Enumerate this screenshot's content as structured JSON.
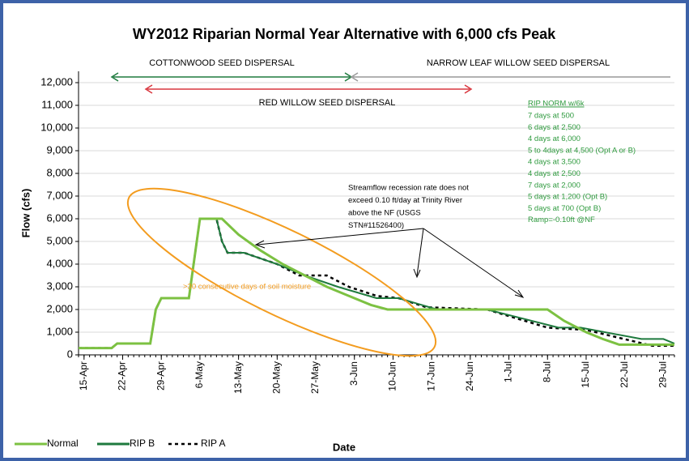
{
  "chart_data": {
    "type": "line",
    "title": "WY2012 Riparian Normal Year Alternative with 6,000 cfs Peak",
    "x_label": "Date",
    "y_label": "Flow (cfs)",
    "xlim": [
      "14-Apr",
      "31-Jul"
    ],
    "xticks": [
      "15-Apr",
      "22-Apr",
      "29-Apr",
      "6-May",
      "13-May",
      "20-May",
      "27-May",
      "3-Jun",
      "10-Jun",
      "17-Jun",
      "24-Jun",
      "1-Jul",
      "8-Jul",
      "15-Jul",
      "22-Jul",
      "29-Jul"
    ],
    "ylim": [
      0,
      12500
    ],
    "yticks": [
      0,
      {
        "value": 1000,
        "label": "1,000"
      },
      {
        "value": 2000,
        "label": "2,000"
      },
      {
        "value": 3000,
        "label": "3,000"
      },
      {
        "value": 4000,
        "label": "4,000"
      },
      {
        "value": 5000,
        "label": "5,000"
      },
      {
        "value": 6000,
        "label": "6,000"
      },
      {
        "value": 7000,
        "label": "7,000"
      },
      {
        "value": 8000,
        "label": "8,000"
      },
      {
        "value": 9000,
        "label": "9,000"
      },
      {
        "value": 10000,
        "label": "10,000"
      },
      {
        "value": 11000,
        "label": "11,000"
      },
      {
        "value": 12000,
        "label": "12,000"
      }
    ],
    "grid": true,
    "legend": "bottom-left",
    "series": [
      {
        "name": "Normal",
        "color": "#7cc142",
        "dash": "solid",
        "x": [
          "14-Apr",
          "20-Apr",
          "21-Apr",
          "27-Apr",
          "28-Apr",
          "29-Apr",
          "4-May",
          "6-May",
          "10-May",
          "13-May",
          "17-May",
          "21-May",
          "25-May",
          "29-May",
          "2-Jun",
          "6-Jun",
          "9-Jun",
          "8-Jul",
          "11-Jul",
          "15-Jul",
          "18-Jul",
          "21-Jul",
          "31-Jul"
        ],
        "values": [
          300,
          300,
          500,
          500,
          2000,
          2500,
          2500,
          6000,
          6000,
          5300,
          4600,
          4000,
          3500,
          3000,
          2600,
          2200,
          2000,
          2000,
          1500,
          1000,
          700,
          450,
          450
        ]
      },
      {
        "name": "RIP B",
        "color": "#1e7a3e",
        "dash": "solid",
        "x": [
          "14-Apr",
          "20-Apr",
          "21-Apr",
          "27-Apr",
          "28-Apr",
          "29-Apr",
          "4-May",
          "6-May",
          "9-May",
          "10-May",
          "11-May",
          "14-May",
          "20-May",
          "25-May",
          "31-May",
          "7-Jun",
          "11-Jun",
          "18-Jun",
          "27-Jun",
          "10-Jul",
          "14-Jul",
          "25-Jul",
          "29-Jul",
          "31-Jul"
        ],
        "values": [
          300,
          300,
          500,
          500,
          2000,
          2500,
          2500,
          6000,
          6000,
          5000,
          4500,
          4500,
          4000,
          3500,
          3000,
          2500,
          2500,
          2000,
          2000,
          1200,
          1200,
          700,
          700,
          500
        ]
      },
      {
        "name": "RIP A",
        "color": "#000000",
        "dash": "dotted",
        "x": [
          "14-Apr",
          "20-Apr",
          "21-Apr",
          "27-Apr",
          "28-Apr",
          "29-Apr",
          "4-May",
          "6-May",
          "9-May",
          "10-May",
          "11-May",
          "14-May",
          "20-May",
          "24-May",
          "29-May",
          "2-Jun",
          "7-Jun",
          "11-Jun",
          "16-Jun",
          "27-Jun",
          "8-Jul",
          "15-Jul",
          "27-Jul",
          "31-Jul"
        ],
        "values": [
          300,
          300,
          500,
          500,
          2000,
          2500,
          2500,
          6000,
          6000,
          5000,
          4500,
          4500,
          4000,
          3500,
          3500,
          3000,
          2600,
          2500,
          2100,
          2000,
          1200,
          1100,
          400,
          400
        ]
      }
    ],
    "annotations": {
      "cottonwood": "COTTONWOOD SEED DISPERSAL",
      "narrow_leaf": "NARROW LEAF WILLOW SEED DISPERSAL",
      "red_willow": "RED WILLOW SEED DISPERSAL",
      "recession": [
        "Streamflow recession rate does not",
        "exceed 0.10 ft/day at Trinity River",
        "above the NF (USGS",
        "STN#11526400)"
      ],
      "soil": ">30 consecutive days of soil moisture",
      "box_title": "RIP NORM w/6k",
      "box_lines": [
        "7 days at 500",
        "6 days at 2,500",
        "4 days at 6,000",
        "5 to 4days at 4,500 (Opt A or B)",
        "4 days at 3,500",
        "4 days at 2,500",
        "7 days at 2,000",
        "5 days at 1,200 (Opt B)",
        "5 days at 700 (Opt B)",
        "Ramp=-0.10ft @NF"
      ]
    }
  }
}
